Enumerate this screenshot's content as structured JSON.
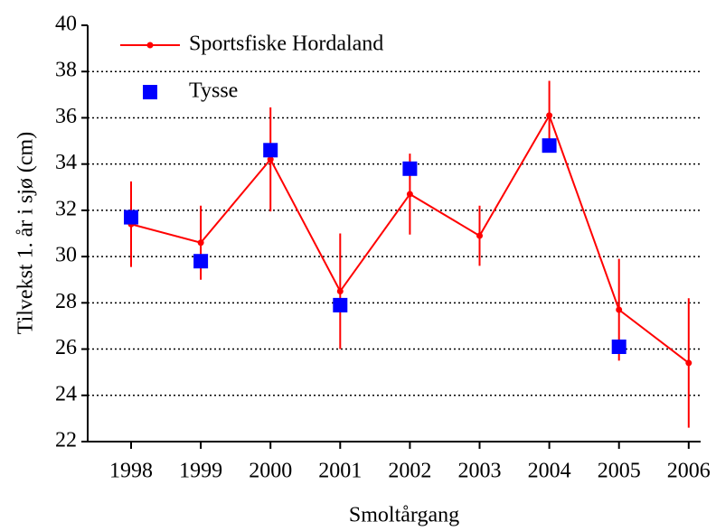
{
  "chart_data": {
    "type": "line",
    "x_label": "Smoltårgang",
    "y_label": "Tilvekst 1. år i sjø (cm)",
    "categories": [
      "1998",
      "1999",
      "2000",
      "2001",
      "2002",
      "2003",
      "2004",
      "2005",
      "2006"
    ],
    "series": [
      {
        "name": "Sportsfiske Hordaland",
        "color": "#ff0000",
        "style": "line",
        "values": [
          31.4,
          30.6,
          34.2,
          28.5,
          32.7,
          30.9,
          36.1,
          27.7,
          25.4
        ],
        "errors": [
          1.85,
          1.6,
          2.25,
          2.5,
          1.75,
          1.3,
          1.5,
          2.2,
          2.8
        ]
      },
      {
        "name": "Tysse",
        "color": "#0000ff",
        "style": "markers",
        "values": [
          31.7,
          29.8,
          34.6,
          27.9,
          33.8,
          null,
          34.8,
          26.1,
          null
        ]
      }
    ],
    "ylim": [
      22,
      40
    ],
    "yticks": [
      22,
      24,
      26,
      28,
      30,
      32,
      34,
      36,
      38,
      40
    ],
    "grid": true,
    "legend": "top-left"
  }
}
